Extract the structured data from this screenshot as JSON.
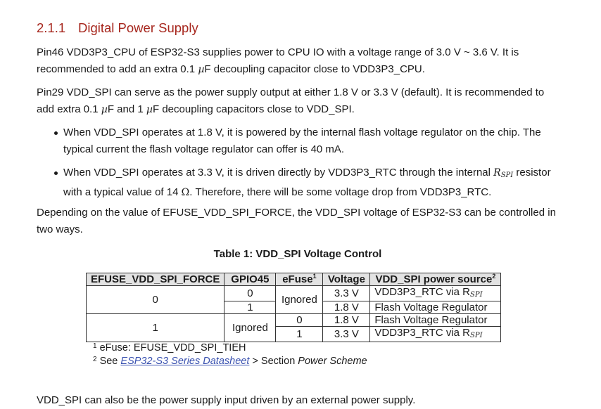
{
  "section": {
    "number": "2.1.1",
    "title": "Digital Power Supply"
  },
  "para1": {
    "a": "Pin46 VDD3P3_CPU of ESP32-S3 supplies power to CPU IO with a voltage range of 3.0 V ~ 3.6 V. It is recommended to add an extra 0.1 ",
    "mu": "µ",
    "b": "F decoupling capacitor close to VDD3P3_CPU."
  },
  "para2": {
    "a": "Pin29 VDD_SPI can serve as the power supply output at either 1.8 V or 3.3 V (default). It is recommended to add extra 0.1 ",
    "mu1": "µ",
    "b": "F and 1 ",
    "mu2": "µ",
    "c": "F decoupling capacitors close to VDD_SPI."
  },
  "bullets": {
    "b1": "When VDD_SPI operates at 1.8 V, it is powered by the internal flash voltage regulator on the chip. The typical current the flash voltage regulator can offer is 40 mA.",
    "b2a": "When VDD_SPI operates at 3.3 V, it is driven directly by VDD3P3_RTC through the internal ",
    "b2_R": "R",
    "b2_sub": "SPI",
    "b2b": " resistor with a typical value of 14 ",
    "b2_ohm": "Ω",
    "b2c": ". Therefore, there will be some voltage drop from VDD3P3_RTC."
  },
  "para3": "Depending on the value of EFUSE_VDD_SPI_FORCE, the VDD_SPI voltage of ESP32-S3 can be controlled in two ways.",
  "table": {
    "caption": "Table 1: VDD_SPI Voltage Control",
    "headers": {
      "force": "EFUSE_VDD_SPI_FORCE",
      "gpio": "GPIO45",
      "efuse": "eFuse",
      "efuse_sup": "1",
      "voltage": "Voltage",
      "source": "VDD_SPI power source",
      "source_sup": "2"
    },
    "group0": {
      "force": "0",
      "efuse": "Ignored",
      "rows": [
        {
          "gpio": "0",
          "voltage": "3.3 V",
          "source": "VDD3P3_RTC via R",
          "sub": "SPI"
        },
        {
          "gpio": "1",
          "voltage": "1.8 V",
          "source": "Flash Voltage Regulator"
        }
      ]
    },
    "group1": {
      "force": "1",
      "gpio": "Ignored",
      "rows": [
        {
          "efuse": "0",
          "voltage": "1.8 V",
          "source": "Flash Voltage Regulator"
        },
        {
          "efuse": "1",
          "voltage": "3.3 V",
          "source": "VDD3P3_RTC via R",
          "sub": "SPI"
        }
      ]
    }
  },
  "footnotes": {
    "fn1_mark": "1",
    "fn1_text": "eFuse: EFUSE_VDD_SPI_TIEH",
    "fn2_mark": "2",
    "fn2_a": "See ",
    "fn2_link": "ESP32-S3 Series Datasheet",
    "fn2_b": " > Section ",
    "fn2_c": "Power Scheme"
  },
  "para4": "VDD_SPI can also be the power supply input driven by an external power supply."
}
